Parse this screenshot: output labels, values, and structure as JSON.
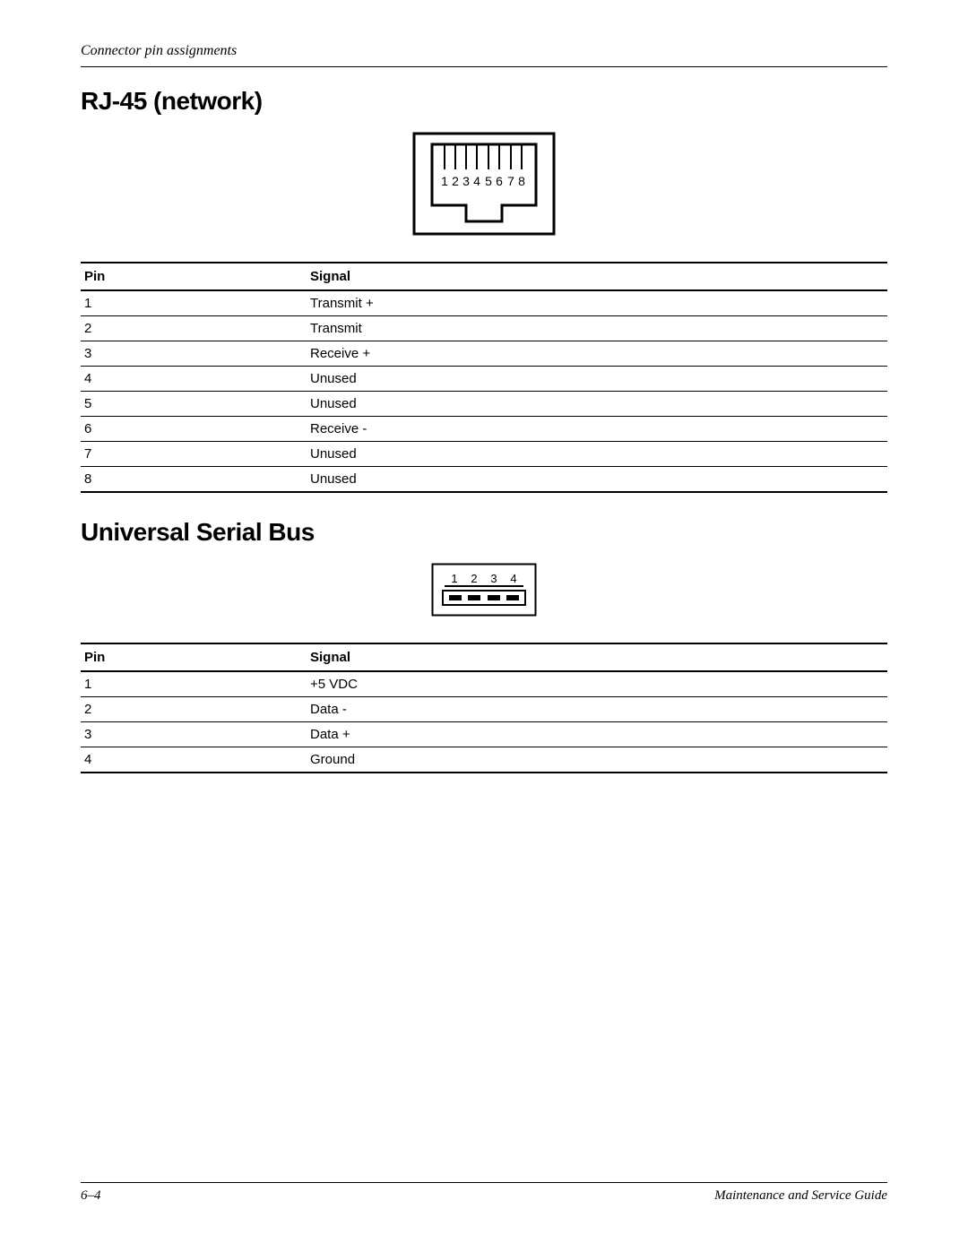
{
  "header": {
    "title": "Connector pin assignments"
  },
  "sections": {
    "rj45": {
      "heading": "RJ-45 (network)",
      "diagram": {
        "type": "connector",
        "pin_count": 8,
        "pin_labels": [
          "1",
          "2",
          "3",
          "4",
          "5",
          "6",
          "7",
          "8"
        ],
        "outer_width": 160,
        "outer_height": 116,
        "border_color": "#000000",
        "border_width": 3,
        "background": "#ffffff",
        "label_fontsize": 14
      },
      "table": {
        "columns": [
          "Pin",
          "Signal"
        ],
        "rows": [
          [
            "1",
            "Transmit +"
          ],
          [
            "2",
            "Transmit"
          ],
          [
            "3",
            "Receive +"
          ],
          [
            "4",
            "Unused"
          ],
          [
            "5",
            "Unused"
          ],
          [
            "6",
            "Receive -"
          ],
          [
            "7",
            "Unused"
          ],
          [
            "8",
            "Unused"
          ]
        ],
        "header_border_width": 2.5,
        "row_border_width": 1,
        "fontsize": 15
      }
    },
    "usb": {
      "heading": "Universal Serial Bus",
      "diagram": {
        "type": "connector",
        "pin_count": 4,
        "pin_labels": [
          "1",
          "2",
          "3",
          "4"
        ],
        "outer_width": 118,
        "outer_height": 60,
        "border_color": "#000000",
        "border_width": 2,
        "background": "#ffffff",
        "label_fontsize": 13,
        "contact_fill": "#000000"
      },
      "table": {
        "columns": [
          "Pin",
          "Signal"
        ],
        "rows": [
          [
            "1",
            "+5 VDC"
          ],
          [
            "2",
            "Data -"
          ],
          [
            "3",
            "Data +"
          ],
          [
            "4",
            "Ground"
          ]
        ],
        "header_border_width": 2.5,
        "row_border_width": 1,
        "fontsize": 15
      }
    }
  },
  "footer": {
    "page": "6–4",
    "doc": "Maintenance and Service Guide"
  },
  "colors": {
    "text": "#000000",
    "background": "#ffffff",
    "rule": "#000000"
  }
}
